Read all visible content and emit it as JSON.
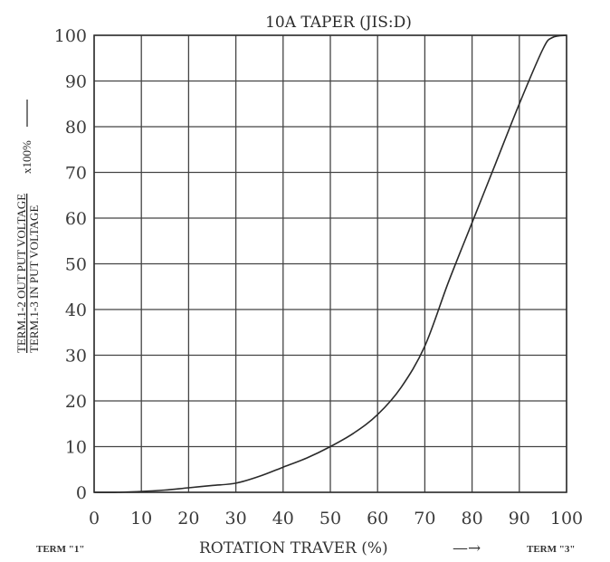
{
  "chart_data": {
    "type": "line",
    "title": "10A TAPER (JIS:D)",
    "xlabel": "ROTATION TRAVER (%)",
    "xlabel_arrow": "—→",
    "ylabel_numerator": "TERM.1-2 OUT PUT VOLTAGE",
    "ylabel_denominator": "TERM.1-3 IN PUT VOLTAGE",
    "ylabel_suffix": "x100%",
    "term_left": "TERM \"1\"",
    "term_right": "TERM \"3\"",
    "xlim": [
      0,
      100
    ],
    "ylim": [
      0,
      100
    ],
    "x_ticks": [
      "0",
      "10",
      "20",
      "30",
      "40",
      "50",
      "60",
      "70",
      "80",
      "90",
      "100"
    ],
    "y_ticks": [
      "0",
      "10",
      "20",
      "30",
      "40",
      "50",
      "60",
      "70",
      "80",
      "90",
      "100"
    ],
    "grid": true,
    "series": [
      {
        "x": [
          0,
          5,
          10,
          15,
          20,
          25,
          30,
          35,
          40,
          45,
          50,
          55,
          60,
          65,
          70,
          75,
          80,
          85,
          90,
          95,
          97,
          100
        ],
        "y": [
          0,
          0,
          0.2,
          0.5,
          1,
          1.5,
          2,
          3.5,
          5.5,
          7.5,
          10,
          13,
          17,
          23,
          32,
          46,
          59,
          72,
          85,
          97,
          99.5,
          100
        ]
      }
    ]
  }
}
